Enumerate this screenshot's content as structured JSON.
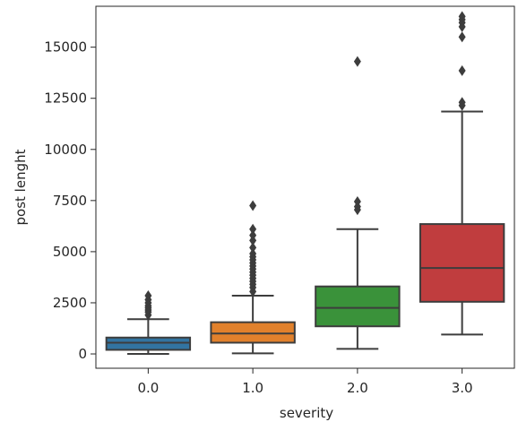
{
  "chart_data": {
    "type": "box",
    "xlabel": "severity",
    "ylabel": "post lenght",
    "categories": [
      "0.0",
      "1.0",
      "2.0",
      "3.0"
    ],
    "ylim": [
      -700,
      17000
    ],
    "yticks": [
      0,
      2500,
      5000,
      7500,
      10000,
      12500,
      15000
    ],
    "ytick_labels": [
      "0",
      "2500",
      "5000",
      "7500",
      "10000",
      "12500",
      "15000"
    ],
    "grid": false,
    "boxes": [
      {
        "category": "0.0",
        "color": "#3274a1",
        "whisker_low": 0,
        "q1": 200,
        "median": 550,
        "q3": 800,
        "whisker_high": 1700,
        "outliers": [
          1900,
          2050,
          2150,
          2250,
          2350,
          2500,
          2650,
          2850
        ]
      },
      {
        "category": "1.0",
        "color": "#e1812c",
        "whisker_low": 30,
        "q1": 550,
        "median": 1000,
        "q3": 1550,
        "whisker_high": 2850,
        "outliers": [
          3050,
          3250,
          3400,
          3550,
          3700,
          3850,
          4000,
          4150,
          4300,
          4450,
          4600,
          4750,
          4900,
          5200,
          5550,
          5800,
          6100,
          7250
        ]
      },
      {
        "category": "2.0",
        "color": "#3a923a",
        "whisker_low": 250,
        "q1": 1350,
        "median": 2250,
        "q3": 3300,
        "whisker_high": 6100,
        "outliers": [
          7050,
          7200,
          7450,
          14300
        ]
      },
      {
        "category": "3.0",
        "color": "#c03d3e",
        "whisker_low": 950,
        "q1": 2550,
        "median": 4200,
        "q3": 6350,
        "whisker_high": 11850,
        "outliers": [
          12150,
          12300,
          13850,
          15500,
          16000,
          16200,
          16350,
          16500
        ]
      }
    ]
  }
}
